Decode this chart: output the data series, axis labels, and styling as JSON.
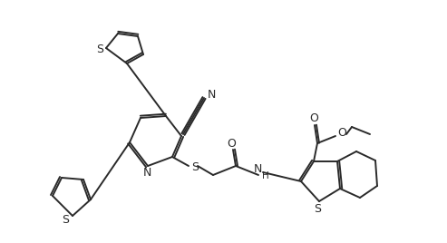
{
  "bg_color": "#ffffff",
  "bond_color": "#2a2a2a",
  "line_width": 1.4,
  "figsize": [
    4.93,
    2.68
  ],
  "dpi": 100,
  "atoms": {
    "S_label": "S",
    "N_label": "N",
    "O_label": "O",
    "H_label": "H"
  }
}
